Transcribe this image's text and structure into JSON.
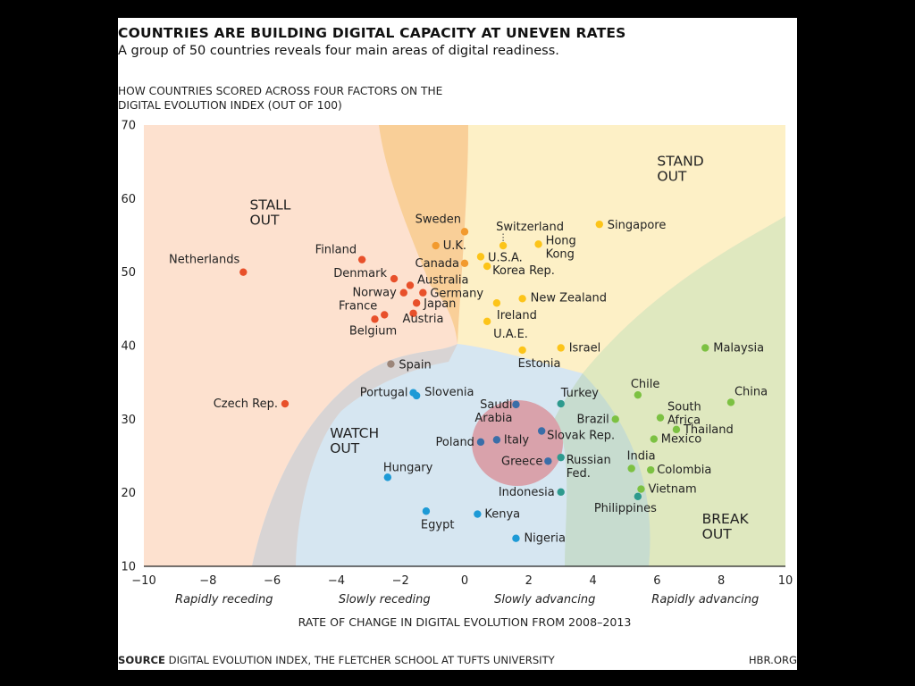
{
  "header": {
    "title": "COUNTRIES ARE BUILDING DIGITAL CAPACITY AT UNEVEN RATES",
    "subtitle": "A group of 50 countries reveals four main areas of digital readiness.",
    "ylabel_line1": "HOW COUNTRIES SCORED ACROSS FOUR FACTORS ON THE",
    "ylabel_line2": "DIGITAL EVOLUTION INDEX (OUT OF 100)"
  },
  "footer": {
    "source_label": "SOURCE",
    "source_text": "DIGITAL EVOLUTION INDEX, THE FLETCHER SCHOOL AT TUFTS UNIVERSITY",
    "site": "HBR.ORG"
  },
  "colors": {
    "stall_out": "#e8502a",
    "stand_out": "#fcc419",
    "break_out": "#7cc142",
    "watch_out": "#1d9ad6",
    "neutral": "#9b8579",
    "transition_orange": "#f29a2e",
    "transition_teal": "#2e9a8e",
    "transition_blue": "#3a6ea8"
  },
  "chart_data": {
    "type": "scatter",
    "title": "COUNTRIES ARE BUILDING DIGITAL CAPACITY AT UNEVEN RATES",
    "xlabel": "RATE OF CHANGE IN DIGITAL EVOLUTION FROM 2008–2013",
    "ylabel": "HOW COUNTRIES SCORED ACROSS FOUR FACTORS ON THE DIGITAL EVOLUTION INDEX (OUT OF 100)",
    "xlim": [
      -10,
      10
    ],
    "ylim": [
      10,
      70
    ],
    "xticks": [
      -10,
      -8,
      -6,
      -4,
      -2,
      0,
      2,
      4,
      6,
      8,
      10
    ],
    "yticks": [
      10,
      20,
      30,
      40,
      50,
      60,
      70
    ],
    "x_categories": [
      "Rapidly receding",
      "Slowly receding",
      "Slowly advancing",
      "Rapidly advancing"
    ],
    "zones": [
      {
        "label_line1": "STALL",
        "label_line2": "OUT",
        "label_x": -6.7,
        "label_y": 58.5
      },
      {
        "label_line1": "STAND",
        "label_line2": "OUT",
        "label_x": 6.0,
        "label_y": 64.5
      },
      {
        "label_line1": "WATCH",
        "label_line2": "OUT",
        "label_x": -4.2,
        "label_y": 27.5
      },
      {
        "label_line1": "BREAK",
        "label_line2": "OUT",
        "label_x": 7.4,
        "label_y": 15.8
      }
    ],
    "points": [
      {
        "name": "Netherlands",
        "x": -6.9,
        "y": 50.0,
        "zone": "stall_out"
      },
      {
        "name": "Finland",
        "x": -3.2,
        "y": 51.7,
        "zone": "stall_out"
      },
      {
        "name": "Denmark",
        "x": -2.2,
        "y": 49.1,
        "zone": "stall_out"
      },
      {
        "name": "Norway",
        "x": -1.9,
        "y": 47.2,
        "zone": "stall_out"
      },
      {
        "name": "Australia",
        "x": -1.7,
        "y": 48.2,
        "zone": "stall_out"
      },
      {
        "name": "Germany",
        "x": -1.3,
        "y": 47.2,
        "zone": "stall_out"
      },
      {
        "name": "France",
        "x": -2.5,
        "y": 44.2,
        "zone": "stall_out"
      },
      {
        "name": "Belgium",
        "x": -2.8,
        "y": 43.6,
        "zone": "stall_out"
      },
      {
        "name": "Japan",
        "x": -1.5,
        "y": 45.8,
        "zone": "stall_out"
      },
      {
        "name": "Austria",
        "x": -1.6,
        "y": 44.4,
        "zone": "stall_out"
      },
      {
        "name": "Czech Rep.",
        "x": -5.6,
        "y": 32.1,
        "zone": "stall_out"
      },
      {
        "name": "Sweden",
        "x": 0.0,
        "y": 55.5,
        "zone": "transition_orange"
      },
      {
        "name": "U.K.",
        "x": -0.9,
        "y": 53.6,
        "zone": "transition_orange"
      },
      {
        "name": "Canada",
        "x": 0.0,
        "y": 51.2,
        "zone": "transition_orange"
      },
      {
        "name": "Switzerland",
        "x": 1.2,
        "y": 53.6,
        "zone": "stand_out"
      },
      {
        "name": "U.S.A.",
        "x": 0.5,
        "y": 52.1,
        "zone": "stand_out"
      },
      {
        "name": "Korea Rep.",
        "x": 0.7,
        "y": 50.8,
        "zone": "stand_out"
      },
      {
        "name": "Hong Kong",
        "x": 2.3,
        "y": 53.8,
        "zone": "stand_out"
      },
      {
        "name": "Singapore",
        "x": 4.2,
        "y": 56.5,
        "zone": "stand_out"
      },
      {
        "name": "New Zealand",
        "x": 1.8,
        "y": 46.4,
        "zone": "stand_out"
      },
      {
        "name": "Ireland",
        "x": 1.0,
        "y": 45.8,
        "zone": "stand_out"
      },
      {
        "name": "U.A.E.",
        "x": 0.7,
        "y": 43.3,
        "zone": "stand_out"
      },
      {
        "name": "Israel",
        "x": 3.0,
        "y": 39.7,
        "zone": "stand_out"
      },
      {
        "name": "Estonia",
        "x": 1.8,
        "y": 39.4,
        "zone": "stand_out"
      },
      {
        "name": "Spain",
        "x": -2.3,
        "y": 37.5,
        "zone": "neutral"
      },
      {
        "name": "Portugal",
        "x": -1.6,
        "y": 33.6,
        "zone": "watch_out"
      },
      {
        "name": "Slovenia",
        "x": -1.5,
        "y": 33.2,
        "zone": "watch_out"
      },
      {
        "name": "Saudi Arabia",
        "x": 1.6,
        "y": 32.0,
        "zone": "transition_blue"
      },
      {
        "name": "Poland",
        "x": 0.5,
        "y": 26.9,
        "zone": "transition_blue"
      },
      {
        "name": "Italy",
        "x": 1.0,
        "y": 27.2,
        "zone": "transition_blue"
      },
      {
        "name": "Slovak Rep.",
        "x": 2.4,
        "y": 28.4,
        "zone": "transition_blue"
      },
      {
        "name": "Greece",
        "x": 2.6,
        "y": 24.3,
        "zone": "transition_blue"
      },
      {
        "name": "Hungary",
        "x": -2.4,
        "y": 22.1,
        "zone": "watch_out"
      },
      {
        "name": "Egypt",
        "x": -1.2,
        "y": 17.5,
        "zone": "watch_out"
      },
      {
        "name": "Kenya",
        "x": 0.4,
        "y": 17.1,
        "zone": "watch_out"
      },
      {
        "name": "Nigeria",
        "x": 1.6,
        "y": 13.8,
        "zone": "watch_out"
      },
      {
        "name": "Turkey",
        "x": 3.0,
        "y": 32.1,
        "zone": "transition_teal"
      },
      {
        "name": "Russian Fed.",
        "x": 3.0,
        "y": 24.8,
        "zone": "transition_teal"
      },
      {
        "name": "Indonesia",
        "x": 3.0,
        "y": 20.1,
        "zone": "transition_teal"
      },
      {
        "name": "Philippines",
        "x": 5.4,
        "y": 19.5,
        "zone": "transition_teal"
      },
      {
        "name": "Brazil",
        "x": 4.7,
        "y": 30.0,
        "zone": "break_out"
      },
      {
        "name": "Chile",
        "x": 5.4,
        "y": 33.3,
        "zone": "break_out"
      },
      {
        "name": "South Africa",
        "x": 6.1,
        "y": 30.2,
        "zone": "break_out"
      },
      {
        "name": "Thailand",
        "x": 6.6,
        "y": 28.6,
        "zone": "break_out"
      },
      {
        "name": "Mexico",
        "x": 5.9,
        "y": 27.3,
        "zone": "break_out"
      },
      {
        "name": "India",
        "x": 5.2,
        "y": 23.3,
        "zone": "break_out"
      },
      {
        "name": "Colombia",
        "x": 5.8,
        "y": 23.1,
        "zone": "break_out"
      },
      {
        "name": "Vietnam",
        "x": 5.5,
        "y": 20.5,
        "zone": "break_out"
      },
      {
        "name": "Malaysia",
        "x": 7.5,
        "y": 39.7,
        "zone": "break_out"
      },
      {
        "name": "China",
        "x": 8.3,
        "y": 32.3,
        "zone": "break_out"
      }
    ]
  }
}
